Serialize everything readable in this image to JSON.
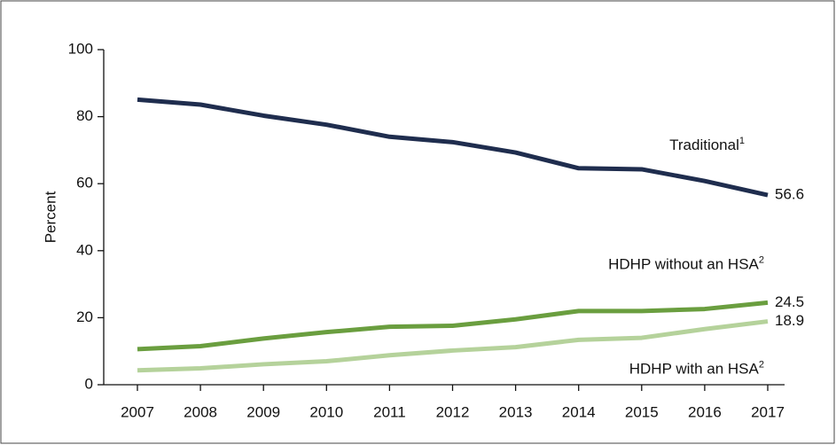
{
  "chart_data": {
    "type": "line",
    "y_label": "Percent",
    "categories": [
      "2007",
      "2008",
      "2009",
      "2010",
      "2011",
      "2012",
      "2013",
      "2014",
      "2015",
      "2016",
      "2017"
    ],
    "series": [
      {
        "name": "Traditional",
        "note": "1",
        "color": "#1f2d4e",
        "values": [
          85.1,
          83.6,
          80.3,
          77.6,
          74.0,
          72.4,
          69.3,
          64.6,
          64.3,
          60.8,
          56.6
        ]
      },
      {
        "name": "HDHP without an HSA",
        "note": "2",
        "color": "#6a9e3f",
        "values": [
          10.6,
          11.5,
          13.8,
          15.7,
          17.3,
          17.6,
          19.5,
          22.0,
          22.0,
          22.6,
          24.5
        ]
      },
      {
        "name": "HDHP with an HSA",
        "note": "2",
        "color": "#b5d29b",
        "values": [
          4.3,
          4.9,
          6.1,
          7.0,
          8.8,
          10.2,
          11.2,
          13.4,
          14.0,
          16.6,
          18.9
        ]
      }
    ],
    "ylim": [
      0,
      100
    ],
    "yticks": [
      0,
      20,
      40,
      60,
      80,
      100
    ],
    "grid": false
  }
}
